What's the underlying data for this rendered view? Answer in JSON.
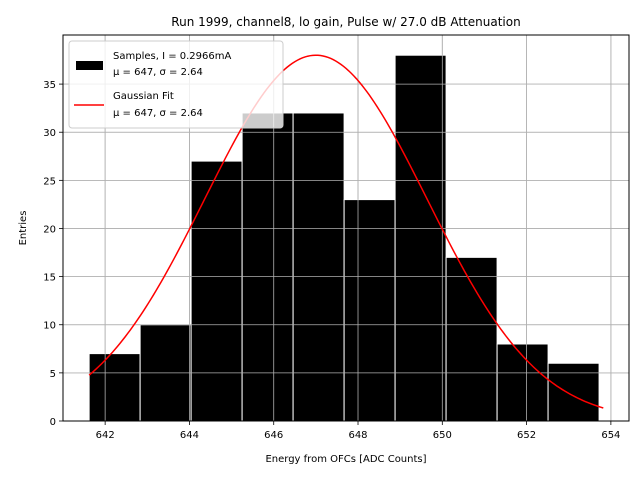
{
  "chart_data": {
    "type": "bar",
    "title": "Run 1999, channel8, lo gain, Pulse w/ 27.0 dB Attenuation",
    "xlabel": "Energy from OFCs [ADC Counts]",
    "ylabel": "Entries",
    "xlim": [
      641.0,
      654.43
    ],
    "ylim": [
      0,
      40.1
    ],
    "xticks": [
      642,
      644,
      646,
      648,
      650,
      652,
      654
    ],
    "yticks": [
      0,
      5,
      10,
      15,
      20,
      25,
      30,
      35
    ],
    "grid": true,
    "bin_edges": [
      641.62,
      642.83,
      644.04,
      645.25,
      646.46,
      647.67,
      648.88,
      650.09,
      651.3,
      652.51,
      653.72
    ],
    "counts": [
      7,
      10,
      27,
      32,
      32,
      23,
      38,
      17,
      8,
      6
    ],
    "bar_color": "#000000",
    "bar_edge_color": "#ffffff",
    "fit": {
      "type": "gaussian",
      "mu": 647.0,
      "sigma": 2.64,
      "amplitude": 38.0,
      "x_range": [
        641.62,
        653.82
      ],
      "color": "#ff0000"
    },
    "legend": {
      "position": "top-left",
      "entries": [
        {
          "line1": "Samples, I = 0.2966mA",
          "line2": "μ = 647, σ = 2.64",
          "kind": "patch",
          "color": "#000000"
        },
        {
          "line1": "Gaussian Fit",
          "line2": "μ = 647, σ = 2.64",
          "kind": "line",
          "color": "#ff0000"
        }
      ]
    }
  }
}
